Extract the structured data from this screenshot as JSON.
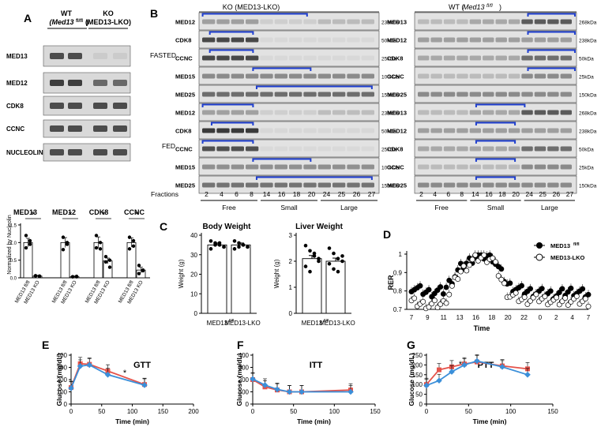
{
  "panels": {
    "A": "A",
    "B": "B",
    "C": "C",
    "D": "D",
    "E": "E",
    "F": "F",
    "G": "G"
  },
  "panelA": {
    "wt_header": "WT",
    "wt_geno_main": "(Med13",
    "wt_geno_sup": "fl/fl",
    "wt_geno_close": ")",
    "ko_header": "KO",
    "ko_geno": "(MED13-LKO)",
    "blot_labels": [
      "MED13",
      "MED12",
      "CDK8",
      "CCNC",
      "NUCLEOLIN"
    ],
    "bar_ylabel": "Normalized by Nucleolin",
    "groups": [
      "MED13",
      "MED12",
      "CDK8",
      "CCNC"
    ],
    "star": "*",
    "xtick_wt_main": "MED13",
    "xtick_wt_sup": "fl/fl",
    "xtick_ko": "MED13 KO",
    "yticks": [
      "0.0",
      "0.5",
      "1.0",
      "1.5"
    ],
    "chart_data": {
      "type": "bar",
      "categories": [
        "MED13",
        "MED12",
        "CDK8",
        "CCNC"
      ],
      "series": [
        {
          "name": "MED13 fl/fl",
          "values": [
            1.0,
            1.0,
            1.0,
            1.0
          ]
        },
        {
          "name": "MED13 KO",
          "values": [
            0.05,
            0.03,
            0.48,
            0.22
          ]
        }
      ],
      "ylim": [
        0,
        1.5
      ]
    }
  },
  "panelB": {
    "ko_title": "KO (MED13-LKO)",
    "wt_title_main": "WT (",
    "wt_title_it": "Med13",
    "wt_title_sup": "fl/fl",
    "wt_title_close": ")",
    "fasted": "FASTED",
    "fed": "FED",
    "fractions_label": "Fractions",
    "fractions": [
      "2",
      "4",
      "6",
      "8",
      "14",
      "16",
      "18",
      "20",
      "24",
      "25",
      "26",
      "27"
    ],
    "fraction_groups": [
      "Free",
      "Small",
      "Large"
    ],
    "ko_fasted": [
      {
        "label": "MED12",
        "kda": "238kDa"
      },
      {
        "label": "CDK8",
        "kda": "50kDa"
      },
      {
        "label": "CCNC",
        "kda": "25kDa"
      },
      {
        "label": "MED15",
        "kda": "100kDa"
      },
      {
        "label": "MED25",
        "kda": "150kDa"
      }
    ],
    "ko_fed": [
      {
        "label": "MED12",
        "kda": "238kDa"
      },
      {
        "label": "CDK8",
        "kda": "50kDa"
      },
      {
        "label": "CCNC",
        "kda": "25kDa"
      },
      {
        "label": "MED15",
        "kda": "100kDa"
      },
      {
        "label": "MED25",
        "kda": "150kDa"
      }
    ],
    "wt_fasted": [
      {
        "label": "MED13",
        "kda": "268kDa"
      },
      {
        "label": "MED12",
        "kda": "238kDa"
      },
      {
        "label": "CDK8",
        "kda": "50kDa"
      },
      {
        "label": "CCNC",
        "kda": "25kDa"
      },
      {
        "label": "MED25",
        "kda": "150kDa"
      }
    ],
    "wt_fed": [
      {
        "label": "MED13",
        "kda": "268kDa"
      },
      {
        "label": "MED12",
        "kda": "238kDa"
      },
      {
        "label": "CDK8",
        "kda": "50kDa"
      },
      {
        "label": "CCNC",
        "kda": "25kDa"
      },
      {
        "label": "MED25",
        "kda": "150kDa"
      }
    ]
  },
  "panelC": {
    "body_title": "Body Weight",
    "liver_title": "Liver Weight",
    "ylabel": "Weight (g)",
    "body_yticks": [
      "0",
      "10",
      "20",
      "30",
      "40"
    ],
    "liver_yticks": [
      "0",
      "1",
      "2",
      "3"
    ],
    "x_wt_main": "MED13",
    "x_wt_sup": "fl/fl",
    "x_ko": "MED13-LKO",
    "chart_data": [
      {
        "type": "bar",
        "title": "Body Weight",
        "categories": [
          "MED13 fl/fl",
          "MED13-LKO"
        ],
        "values": [
          35,
          35
        ],
        "ylim": [
          0,
          40
        ]
      },
      {
        "type": "bar",
        "title": "Liver Weight",
        "categories": [
          "MED13 fl/fl",
          "MED13-LKO"
        ],
        "values": [
          2.1,
          2.0
        ],
        "ylim": [
          0,
          3
        ]
      }
    ]
  },
  "panelD": {
    "ylabel": "RER",
    "xlabel": "Time",
    "yticks": [
      "0.7",
      "0.8",
      "0.9",
      "1"
    ],
    "xticks": [
      "7",
      "9",
      "11",
      "13",
      "16",
      "18",
      "20",
      "22",
      "0",
      "2",
      "4",
      "7"
    ],
    "legend_wt_main": "MED13",
    "legend_wt_sup": "fl/fl",
    "legend_ko": "MED13-LKO",
    "chart_data": {
      "type": "scatter",
      "ylim": [
        0.7,
        1.0
      ],
      "x": [
        "7",
        "9",
        "11",
        "13",
        "16",
        "18",
        "20",
        "22",
        "0",
        "2",
        "4",
        "7"
      ],
      "series": [
        {
          "name": "MED13 fl/fl",
          "values": [
            0.82,
            0.79,
            0.8,
            0.92,
            0.99,
            0.99,
            0.83,
            0.8,
            0.79,
            0.78,
            0.8,
            0.78
          ]
        },
        {
          "name": "MED13-LKO",
          "values": [
            0.74,
            0.72,
            0.73,
            0.9,
            0.98,
            0.98,
            0.78,
            0.75,
            0.76,
            0.74,
            0.75,
            0.74
          ]
        }
      ]
    }
  },
  "panelE": {
    "title": "GTT",
    "star": "*",
    "ylabel": "Glucose (mg/dL)",
    "xlabel": "Time (min)",
    "yticks": [
      "0",
      "100",
      "200",
      "300",
      "400"
    ],
    "xticks": [
      "0",
      "50",
      "100",
      "150",
      "200"
    ],
    "chart_data": {
      "type": "line",
      "title": "GTT",
      "x": [
        0,
        15,
        30,
        60,
        120
      ],
      "xlim": [
        0,
        200
      ],
      "ylim": [
        0,
        400
      ],
      "series": [
        {
          "values": [
            135,
            330,
            325,
            270,
            160
          ]
        },
        {
          "values": [
            130,
            310,
            320,
            240,
            155
          ]
        }
      ]
    }
  },
  "panelF": {
    "title": "ITT",
    "ylabel": "Glucose (mg/dL)",
    "xlabel": "Time (min)",
    "yticks": [
      "0",
      "100",
      "200",
      "300",
      "400"
    ],
    "xticks": [
      "0",
      "50",
      "100",
      "150"
    ],
    "chart_data": {
      "type": "line",
      "title": "ITT",
      "x": [
        0,
        15,
        30,
        45,
        60,
        120
      ],
      "xlim": [
        0,
        150
      ],
      "ylim": [
        0,
        400
      ],
      "series": [
        {
          "values": [
            200,
            140,
            115,
            100,
            100,
            115
          ]
        },
        {
          "values": [
            205,
            155,
            120,
            100,
            100,
            100
          ]
        }
      ]
    }
  },
  "panelG": {
    "title": "PTT",
    "star": "*",
    "ylabel": "Glucose (mg/dL)",
    "xlabel": "Time (min)",
    "yticks": [
      "0",
      "50",
      "100",
      "150",
      "200",
      "250"
    ],
    "xticks": [
      "0",
      "50",
      "100",
      "150"
    ],
    "chart_data": {
      "type": "line",
      "title": "PTT",
      "x": [
        0,
        15,
        30,
        45,
        60,
        90,
        120
      ],
      "xlim": [
        0,
        150
      ],
      "ylim": [
        0,
        250
      ],
      "series": [
        {
          "values": [
            100,
            175,
            190,
            205,
            215,
            195,
            180
          ]
        },
        {
          "values": [
            95,
            120,
            165,
            200,
            220,
            190,
            150
          ]
        }
      ]
    }
  },
  "colors": {
    "red": "#e5534b",
    "blue": "#3b8fd9",
    "bracket": "#1f3fd0"
  }
}
